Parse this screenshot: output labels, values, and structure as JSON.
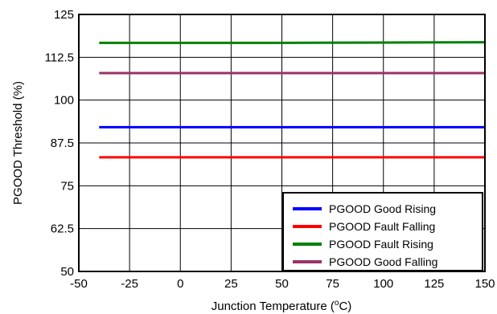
{
  "chart_data": {
    "type": "line",
    "title": "",
    "xlabel": "Junction Temperature (",
    "xlabel_unit_sup": "o",
    "xlabel_unit_tail": "C)",
    "ylabel": "PGOOD Threshold (%)",
    "xlim": [
      -50,
      150
    ],
    "ylim": [
      50,
      125
    ],
    "xticks": [
      -50,
      -25,
      0,
      25,
      50,
      75,
      100,
      125,
      150
    ],
    "yticks": [
      50,
      62.5,
      75,
      87.5,
      100,
      112.5,
      125
    ],
    "xtick_labels": [
      "-50",
      "-25",
      "0",
      "25",
      "50",
      "75",
      "100",
      "125",
      "150"
    ],
    "ytick_labels": [
      "50",
      "62.5",
      "75",
      "87.5",
      "100",
      "112.5",
      "125"
    ],
    "grid": true,
    "legend_position": "bottom-right",
    "series": [
      {
        "name": "PGOOD Good Rising",
        "color": "#0000ff",
        "x": [
          -40,
          0,
          50,
          100,
          150
        ],
        "y": [
          92.1,
          92.1,
          92.1,
          92.1,
          92.1
        ]
      },
      {
        "name": "PGOOD Fault Falling",
        "color": "#ff0000",
        "x": [
          -40,
          0,
          50,
          100,
          150
        ],
        "y": [
          83.3,
          83.3,
          83.3,
          83.3,
          83.3
        ]
      },
      {
        "name": "PGOOD Fault Rising",
        "color": "#008000",
        "x": [
          -40,
          0,
          50,
          100,
          150
        ],
        "y": [
          116.7,
          116.7,
          116.7,
          116.8,
          116.9
        ]
      },
      {
        "name": "PGOOD Good Falling",
        "color": "#993366",
        "x": [
          -40,
          0,
          50,
          100,
          150
        ],
        "y": [
          107.9,
          107.9,
          107.9,
          107.9,
          107.9
        ]
      }
    ]
  }
}
